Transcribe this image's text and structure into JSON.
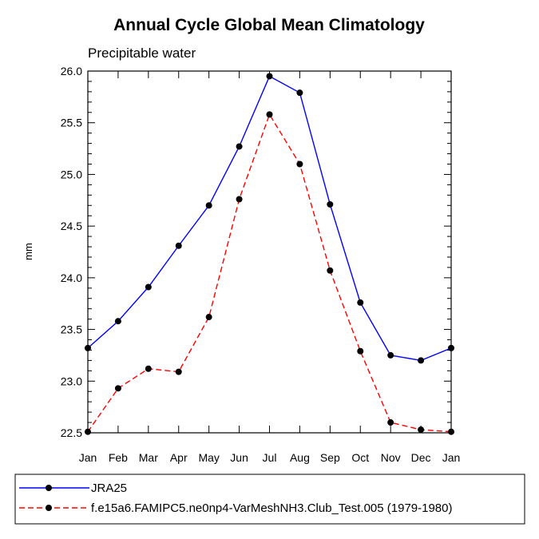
{
  "chart_data": {
    "type": "line",
    "title": "Annual Cycle Global Mean Climatology",
    "subtitle": "Precipitable water",
    "xlabel": "",
    "ylabel": "mm",
    "categories": [
      "Jan",
      "Feb",
      "Mar",
      "Apr",
      "May",
      "Jun",
      "Jul",
      "Aug",
      "Sep",
      "Oct",
      "Nov",
      "Dec",
      "Jan"
    ],
    "ylim": [
      22.5,
      26.0
    ],
    "yticks": [
      "22.5",
      "23.0",
      "23.5",
      "24.0",
      "24.5",
      "25.0",
      "25.5",
      "26.0"
    ],
    "grid": false,
    "legend_position": "bottom",
    "series": [
      {
        "name": "JRA25",
        "color": "#0000ff",
        "dash": "solid",
        "values": [
          23.32,
          23.58,
          23.91,
          24.31,
          24.7,
          25.27,
          25.95,
          25.79,
          24.71,
          23.76,
          23.25,
          23.2,
          23.32
        ]
      },
      {
        "name": "f.e15a6.FAMIPC5.ne0np4-VarMeshNH3.Club_Test.005 (1979-1980)",
        "color": "#ff0000",
        "dash": "dashed",
        "values": [
          22.51,
          22.93,
          23.12,
          23.09,
          23.62,
          24.76,
          25.58,
          25.1,
          24.07,
          23.29,
          22.6,
          22.53,
          22.51
        ]
      }
    ]
  }
}
